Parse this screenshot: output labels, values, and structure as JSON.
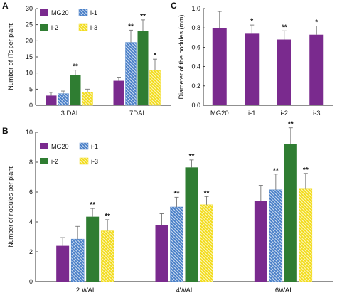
{
  "chart_data": [
    {
      "panel": "A",
      "type": "bar",
      "ylabel": "Number of ITs per plant",
      "ylim": [
        0,
        30
      ],
      "yticks": [
        0,
        5,
        10,
        15,
        20,
        25,
        30
      ],
      "categories": [
        "3 DAI",
        "7DAI"
      ],
      "legend": "top-left, 2 columns",
      "series": [
        {
          "name": "MG20",
          "color": "#7a2a8e",
          "pattern": "solid",
          "values": [
            3.0,
            7.6
          ],
          "errors": [
            1.0,
            1.1
          ],
          "stars": [
            "",
            ""
          ]
        },
        {
          "name": "i-1",
          "color": "#4a80c8",
          "pattern": "hatch",
          "values": [
            3.6,
            19.5
          ],
          "errors": [
            0.8,
            3.8
          ],
          "stars": [
            "",
            "**"
          ]
        },
        {
          "name": "i-2",
          "color": "#2f7d32",
          "pattern": "solid",
          "values": [
            9.3,
            23.0
          ],
          "errors": [
            1.6,
            3.5
          ],
          "stars": [
            "**",
            "**"
          ]
        },
        {
          "name": "i-3",
          "color": "#f2dc1c",
          "pattern": "hatch",
          "values": [
            4.0,
            10.8
          ],
          "errors": [
            1.0,
            3.5
          ],
          "stars": [
            "",
            "*"
          ]
        }
      ]
    },
    {
      "panel": "C",
      "type": "bar",
      "ylabel": "Diameter of the nodules (mm)",
      "ylim": [
        0,
        1.0
      ],
      "yticks": [
        0.0,
        0.2,
        0.4,
        0.6,
        0.8,
        1.0
      ],
      "categories": [
        "MG20",
        "i-1",
        "i-2",
        "i-3"
      ],
      "color": "#7a2a8e",
      "values": [
        0.8,
        0.74,
        0.68,
        0.73
      ],
      "errors": [
        0.17,
        0.09,
        0.09,
        0.09
      ],
      "stars": [
        "",
        "*",
        "**",
        "*"
      ]
    },
    {
      "panel": "B",
      "type": "bar",
      "ylabel": "Number of nodules per plant",
      "ylim": [
        0,
        10
      ],
      "yticks": [
        0,
        2,
        4,
        6,
        8,
        10
      ],
      "categories": [
        "2 WAI",
        "4WAI",
        "6WAI"
      ],
      "legend": "top-left, 2 columns",
      "series": [
        {
          "name": "MG20",
          "color": "#7a2a8e",
          "pattern": "solid",
          "values": [
            2.4,
            3.8,
            5.4
          ],
          "errors": [
            0.55,
            0.75,
            1.05
          ],
          "stars": [
            "",
            "",
            ""
          ]
        },
        {
          "name": "i-1",
          "color": "#4a80c8",
          "pattern": "hatch",
          "values": [
            2.85,
            5.0,
            6.15
          ],
          "errors": [
            0.85,
            0.65,
            1.05
          ],
          "stars": [
            "",
            "**",
            "**"
          ]
        },
        {
          "name": "i-2",
          "color": "#2f7d32",
          "pattern": "solid",
          "values": [
            4.35,
            7.65,
            9.2
          ],
          "errors": [
            0.55,
            0.5,
            1.1
          ],
          "stars": [
            "**",
            "**",
            "**"
          ]
        },
        {
          "name": "i-3",
          "color": "#f2dc1c",
          "pattern": "hatch",
          "values": [
            3.4,
            5.15,
            6.2
          ],
          "errors": [
            0.75,
            0.55,
            1.05
          ],
          "stars": [
            "**",
            "**",
            "**"
          ]
        }
      ]
    }
  ]
}
